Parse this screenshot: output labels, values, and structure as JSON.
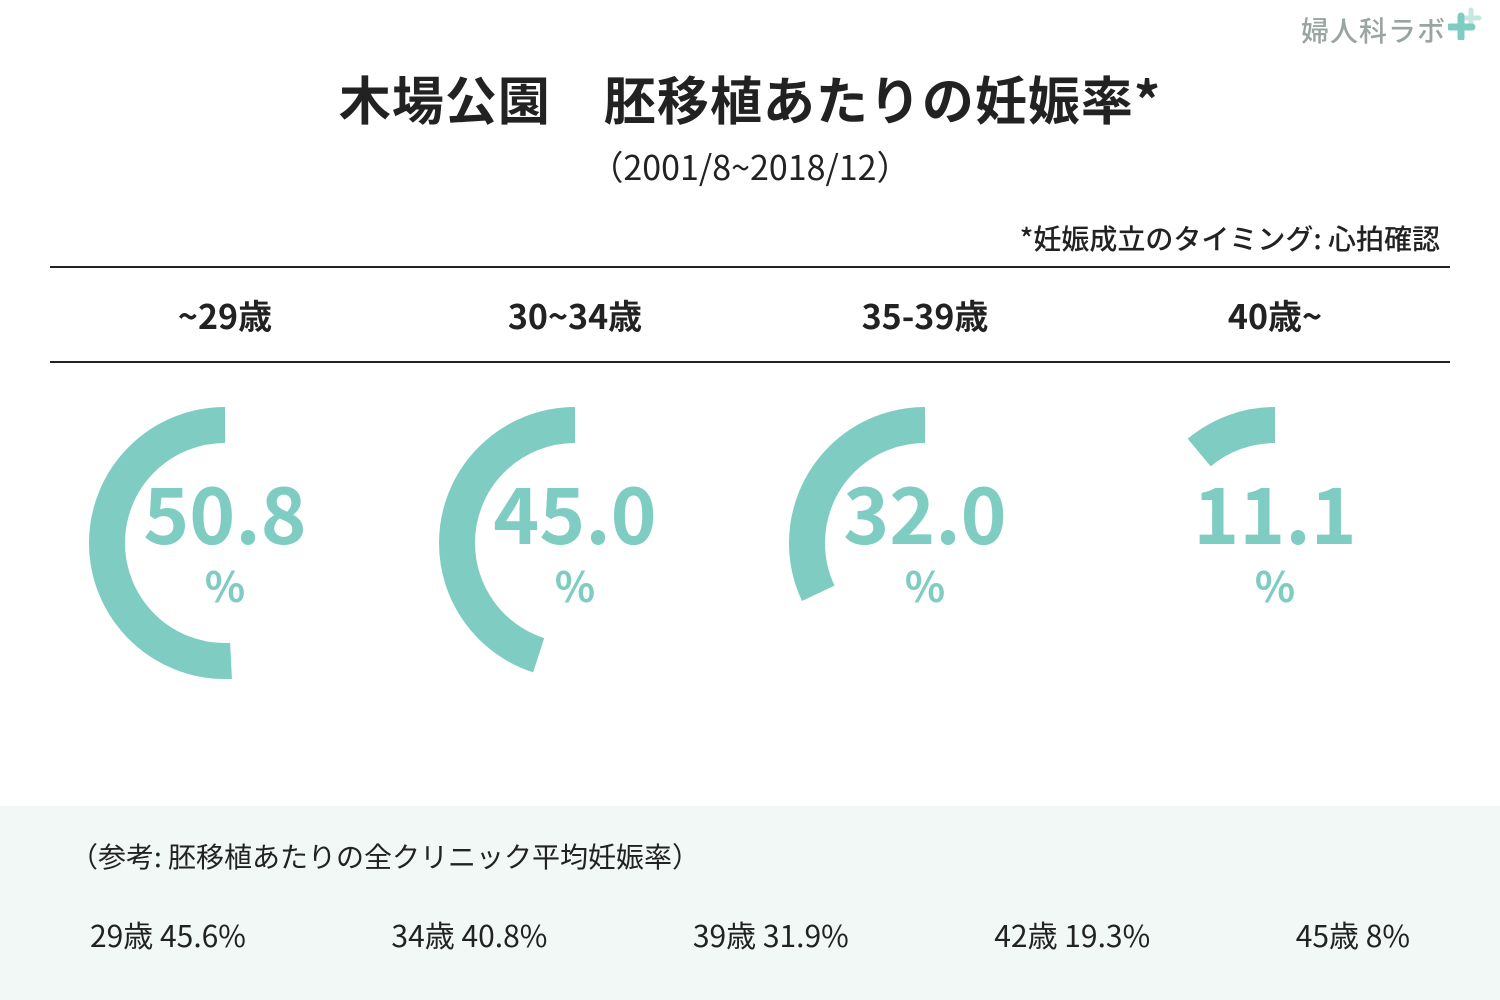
{
  "logo": {
    "text": "婦人科ラボ",
    "text_color": "#9aa5a0",
    "plus_color": "#7fcdc2"
  },
  "title": "木場公園　胚移植あたりの妊娠率*",
  "subtitle": "（2001/8~2018/12）",
  "note": "*妊娠成立のタイミング: 心拍確認",
  "colors": {
    "text": "#222222",
    "arc": "#7fcdc2",
    "gauge_text": "#7fcdc2",
    "rule": "#222222",
    "background": "#ffffff",
    "footer_bg": "#f2f8f6"
  },
  "chart": {
    "type": "radial-gauge",
    "value_fontsize_pt": 58,
    "unit": "%",
    "unit_fontsize_pt": 32,
    "header_fontsize_pt": 26,
    "arc_stroke_width": 36,
    "gauge_radius": 118,
    "arc_start_angle_deg": 0,
    "arc_max_angle_deg": 360,
    "arc_direction": "counterclockwise",
    "columns": [
      {
        "header": "~29歳",
        "value": 50.8,
        "display": "50.8"
      },
      {
        "header": "30~34歳",
        "value": 45.0,
        "display": "45.0"
      },
      {
        "header": "35-39歳",
        "value": 32.0,
        "display": "32.0"
      },
      {
        "header": "40歳~",
        "value": 11.1,
        "display": "11.1"
      }
    ]
  },
  "footer": {
    "title": "（参考: 胚移植あたりの全クリニック平均妊娠率）",
    "title_fontsize_pt": 21,
    "item_fontsize_pt": 23,
    "items": [
      "29歳 45.6%",
      "34歳 40.8%",
      "39歳 31.9%",
      "42歳 19.3%",
      "45歳 8%"
    ]
  }
}
